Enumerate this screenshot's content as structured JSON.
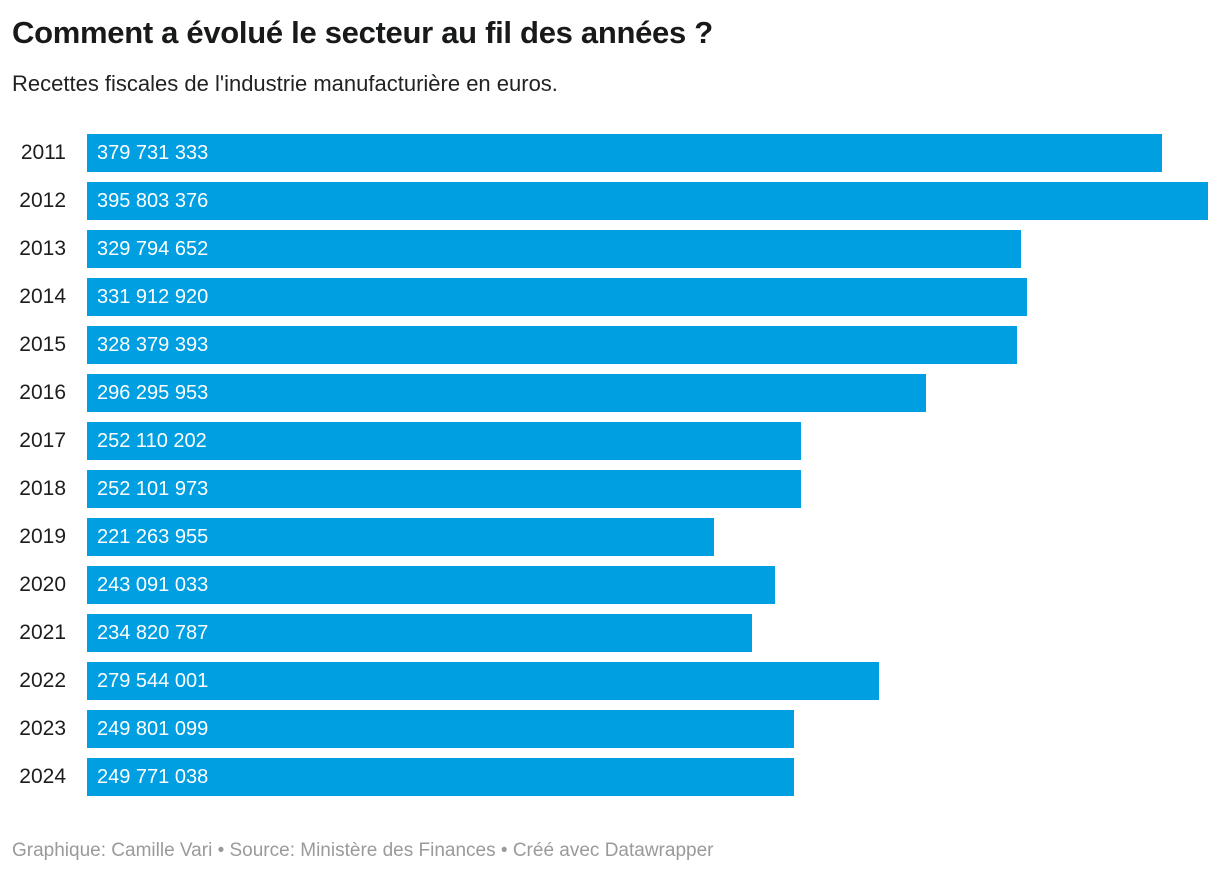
{
  "header": {
    "title": "Comment a évolué le secteur au fil des années ?",
    "subtitle": "Recettes fiscales de l'industrie manufacturière en euros."
  },
  "chart_data": {
    "type": "bar",
    "orientation": "horizontal",
    "title": "Comment a évolué le secteur au fil des années ?",
    "subtitle": "Recettes fiscales de l'industrie manufacturière en euros.",
    "categories": [
      "2011",
      "2012",
      "2013",
      "2014",
      "2015",
      "2016",
      "2017",
      "2018",
      "2019",
      "2020",
      "2021",
      "2022",
      "2023",
      "2024"
    ],
    "values": [
      379731333,
      395803376,
      329794652,
      331912920,
      328379393,
      296295953,
      252110202,
      252101973,
      221263955,
      243091033,
      234820787,
      279544001,
      249801099,
      249771038
    ],
    "value_labels": [
      "379 731 333",
      "395 803 376",
      "329 794 652",
      "331 912 920",
      "328 379 393",
      "296 295 953",
      "252 110 202",
      "252 101 973",
      "221 263 955",
      "243 091 033",
      "234 820 787",
      "279 544 001",
      "249 801 099",
      "249 771 038"
    ],
    "xlim": [
      0,
      395803376
    ],
    "grid": false,
    "legend": false,
    "bar_color": "#009fe1",
    "value_label_color": "#ffffff",
    "category_label_color": "#1d1d1d"
  },
  "footer": {
    "text": "Graphique: Camille Vari • Source: Ministère des Finances • Créé avec Datawrapper"
  }
}
